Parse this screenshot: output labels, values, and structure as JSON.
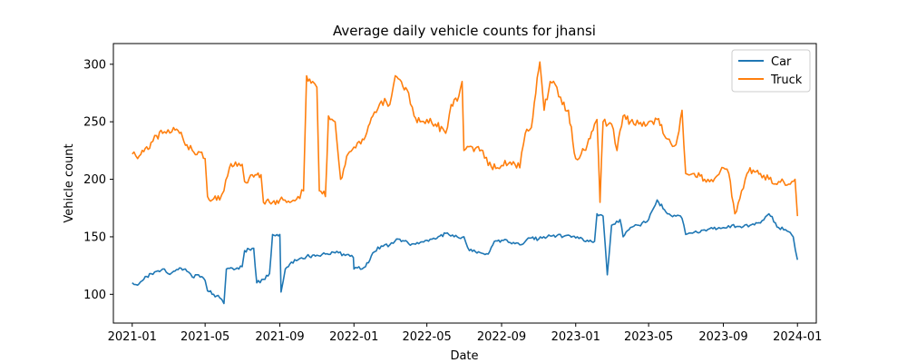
{
  "chart_data": {
    "type": "line",
    "title": "Average daily vehicle counts for jhansi",
    "xlabel": "Date",
    "ylabel": "Vehicle count",
    "x_axis_type": "date",
    "xlim": [
      "2020-12-01",
      "2024-02-01"
    ],
    "ylim": [
      75,
      318
    ],
    "x_ticks": [
      "2021-01",
      "2021-05",
      "2021-09",
      "2022-01",
      "2022-05",
      "2022-09",
      "2023-01",
      "2023-05",
      "2023-09",
      "2024-01"
    ],
    "y_ticks": [
      100,
      150,
      200,
      250,
      300
    ],
    "legend_position": "top-right",
    "grid": false,
    "series": [
      {
        "name": "Car",
        "color": "#1f77b4",
        "points": [
          [
            "2021-01-01",
            110
          ],
          [
            "2021-01-10",
            108
          ],
          [
            "2021-01-20",
            113
          ],
          [
            "2021-02-01",
            118
          ],
          [
            "2021-02-10",
            120
          ],
          [
            "2021-02-20",
            122
          ],
          [
            "2021-03-01",
            118
          ],
          [
            "2021-03-10",
            120
          ],
          [
            "2021-03-20",
            123
          ],
          [
            "2021-04-01",
            120
          ],
          [
            "2021-04-10",
            115
          ],
          [
            "2021-04-20",
            117
          ],
          [
            "2021-05-01",
            112
          ],
          [
            "2021-05-05",
            103
          ],
          [
            "2021-05-15",
            100
          ],
          [
            "2021-05-25",
            97
          ],
          [
            "2021-06-01",
            92
          ],
          [
            "2021-06-05",
            122
          ],
          [
            "2021-06-20",
            122
          ],
          [
            "2021-07-01",
            124
          ],
          [
            "2021-07-05",
            138
          ],
          [
            "2021-07-20",
            140
          ],
          [
            "2021-07-25",
            110
          ],
          [
            "2021-08-05",
            113
          ],
          [
            "2021-08-15",
            118
          ],
          [
            "2021-08-20",
            152
          ],
          [
            "2021-09-01",
            152
          ],
          [
            "2021-09-03",
            102
          ],
          [
            "2021-09-10",
            122
          ],
          [
            "2021-09-20",
            128
          ],
          [
            "2021-10-01",
            130
          ],
          [
            "2021-10-15",
            133
          ],
          [
            "2021-11-01",
            134
          ],
          [
            "2021-11-15",
            135
          ],
          [
            "2021-12-01",
            136
          ],
          [
            "2021-12-15",
            135
          ],
          [
            "2021-12-31",
            132
          ],
          [
            "2022-01-01",
            122
          ],
          [
            "2022-01-20",
            124
          ],
          [
            "2022-02-01",
            136
          ],
          [
            "2022-02-15",
            142
          ],
          [
            "2022-03-01",
            143
          ],
          [
            "2022-03-15",
            148
          ],
          [
            "2022-04-01",
            144
          ],
          [
            "2022-04-15",
            145
          ],
          [
            "2022-05-01",
            147
          ],
          [
            "2022-05-15",
            148
          ],
          [
            "2022-06-01",
            153
          ],
          [
            "2022-06-15",
            150
          ],
          [
            "2022-07-01",
            150
          ],
          [
            "2022-07-10",
            138
          ],
          [
            "2022-07-25",
            137
          ],
          [
            "2022-08-10",
            135
          ],
          [
            "2022-08-20",
            146
          ],
          [
            "2022-09-01",
            147
          ],
          [
            "2022-09-15",
            145
          ],
          [
            "2022-10-01",
            143
          ],
          [
            "2022-10-15",
            149
          ],
          [
            "2022-11-01",
            148
          ],
          [
            "2022-11-15",
            150
          ],
          [
            "2022-12-01",
            151
          ],
          [
            "2022-12-15",
            151
          ],
          [
            "2023-01-01",
            149
          ],
          [
            "2023-01-20",
            147
          ],
          [
            "2023-02-01",
            146
          ],
          [
            "2023-02-05",
            170
          ],
          [
            "2023-02-15",
            168
          ],
          [
            "2023-02-22",
            117
          ],
          [
            "2023-03-01",
            160
          ],
          [
            "2023-03-15",
            165
          ],
          [
            "2023-03-20",
            150
          ],
          [
            "2023-04-01",
            158
          ],
          [
            "2023-04-15",
            160
          ],
          [
            "2023-05-01",
            165
          ],
          [
            "2023-05-15",
            182
          ],
          [
            "2023-06-01",
            170
          ],
          [
            "2023-06-15",
            168
          ],
          [
            "2023-06-25",
            166
          ],
          [
            "2023-07-01",
            152
          ],
          [
            "2023-07-15",
            154
          ],
          [
            "2023-08-01",
            156
          ],
          [
            "2023-08-15",
            157
          ],
          [
            "2023-09-01",
            158
          ],
          [
            "2023-09-15",
            160
          ],
          [
            "2023-10-01",
            158
          ],
          [
            "2023-10-15",
            160
          ],
          [
            "2023-11-01",
            162
          ],
          [
            "2023-11-15",
            170
          ],
          [
            "2023-12-01",
            158
          ],
          [
            "2023-12-15",
            155
          ],
          [
            "2023-12-25",
            150
          ],
          [
            "2024-01-01",
            130
          ]
        ]
      },
      {
        "name": "Truck",
        "color": "#ff7f0e",
        "points": [
          [
            "2021-01-01",
            222
          ],
          [
            "2021-01-10",
            218
          ],
          [
            "2021-01-20",
            224
          ],
          [
            "2021-02-01",
            232
          ],
          [
            "2021-02-10",
            238
          ],
          [
            "2021-02-20",
            240
          ],
          [
            "2021-03-01",
            243
          ],
          [
            "2021-03-10",
            245
          ],
          [
            "2021-03-20",
            240
          ],
          [
            "2021-04-01",
            230
          ],
          [
            "2021-04-10",
            225
          ],
          [
            "2021-04-20",
            224
          ],
          [
            "2021-05-01",
            218
          ],
          [
            "2021-05-05",
            185
          ],
          [
            "2021-05-15",
            183
          ],
          [
            "2021-05-25",
            182
          ],
          [
            "2021-06-01",
            190
          ],
          [
            "2021-06-10",
            210
          ],
          [
            "2021-06-20",
            215
          ],
          [
            "2021-07-01",
            213
          ],
          [
            "2021-07-05",
            198
          ],
          [
            "2021-07-20",
            202
          ],
          [
            "2021-08-01",
            204
          ],
          [
            "2021-08-05",
            180
          ],
          [
            "2021-08-20",
            180
          ],
          [
            "2021-09-01",
            182
          ],
          [
            "2021-09-15",
            181
          ],
          [
            "2021-10-01",
            185
          ],
          [
            "2021-10-10",
            190
          ],
          [
            "2021-10-15",
            290
          ],
          [
            "2021-10-25",
            285
          ],
          [
            "2021-11-01",
            280
          ],
          [
            "2021-11-05",
            190
          ],
          [
            "2021-11-15",
            185
          ],
          [
            "2021-11-20",
            255
          ],
          [
            "2021-12-01",
            250
          ],
          [
            "2021-12-10",
            200
          ],
          [
            "2021-12-20",
            220
          ],
          [
            "2022-01-01",
            228
          ],
          [
            "2022-01-15",
            235
          ],
          [
            "2022-02-01",
            255
          ],
          [
            "2022-02-15",
            268
          ],
          [
            "2022-03-01",
            265
          ],
          [
            "2022-03-10",
            290
          ],
          [
            "2022-03-20",
            285
          ],
          [
            "2022-04-01",
            275
          ],
          [
            "2022-04-10",
            255
          ],
          [
            "2022-04-20",
            250
          ],
          [
            "2022-05-01",
            252
          ],
          [
            "2022-05-15",
            248
          ],
          [
            "2022-06-01",
            240
          ],
          [
            "2022-06-10",
            265
          ],
          [
            "2022-06-20",
            268
          ],
          [
            "2022-06-28",
            285
          ],
          [
            "2022-07-01",
            225
          ],
          [
            "2022-07-15",
            228
          ],
          [
            "2022-08-01",
            225
          ],
          [
            "2022-08-10",
            212
          ],
          [
            "2022-08-25",
            210
          ],
          [
            "2022-09-01",
            212
          ],
          [
            "2022-09-15",
            215
          ],
          [
            "2022-10-01",
            210
          ],
          [
            "2022-10-10",
            240
          ],
          [
            "2022-10-20",
            245
          ],
          [
            "2022-11-01",
            295
          ],
          [
            "2022-11-03",
            302
          ],
          [
            "2022-11-10",
            260
          ],
          [
            "2022-11-20",
            285
          ],
          [
            "2022-12-01",
            280
          ],
          [
            "2022-12-10",
            265
          ],
          [
            "2022-12-20",
            260
          ],
          [
            "2023-01-01",
            218
          ],
          [
            "2023-01-10",
            222
          ],
          [
            "2023-01-20",
            230
          ],
          [
            "2023-02-01",
            248
          ],
          [
            "2023-02-05",
            252
          ],
          [
            "2023-02-10",
            180
          ],
          [
            "2023-02-15",
            250
          ],
          [
            "2023-03-01",
            248
          ],
          [
            "2023-03-10",
            225
          ],
          [
            "2023-03-20",
            255
          ],
          [
            "2023-04-01",
            250
          ],
          [
            "2023-04-15",
            248
          ],
          [
            "2023-05-01",
            250
          ],
          [
            "2023-05-15",
            252
          ],
          [
            "2023-06-01",
            235
          ],
          [
            "2023-06-15",
            230
          ],
          [
            "2023-06-25",
            260
          ],
          [
            "2023-07-01",
            205
          ],
          [
            "2023-07-15",
            205
          ],
          [
            "2023-08-01",
            200
          ],
          [
            "2023-08-15",
            198
          ],
          [
            "2023-09-01",
            210
          ],
          [
            "2023-09-10",
            205
          ],
          [
            "2023-09-20",
            170
          ],
          [
            "2023-10-01",
            190
          ],
          [
            "2023-10-10",
            205
          ],
          [
            "2023-10-20",
            208
          ],
          [
            "2023-11-01",
            205
          ],
          [
            "2023-11-15",
            200
          ],
          [
            "2023-12-01",
            198
          ],
          [
            "2023-12-15",
            195
          ],
          [
            "2023-12-28",
            200
          ],
          [
            "2024-01-01",
            168
          ]
        ]
      }
    ]
  }
}
